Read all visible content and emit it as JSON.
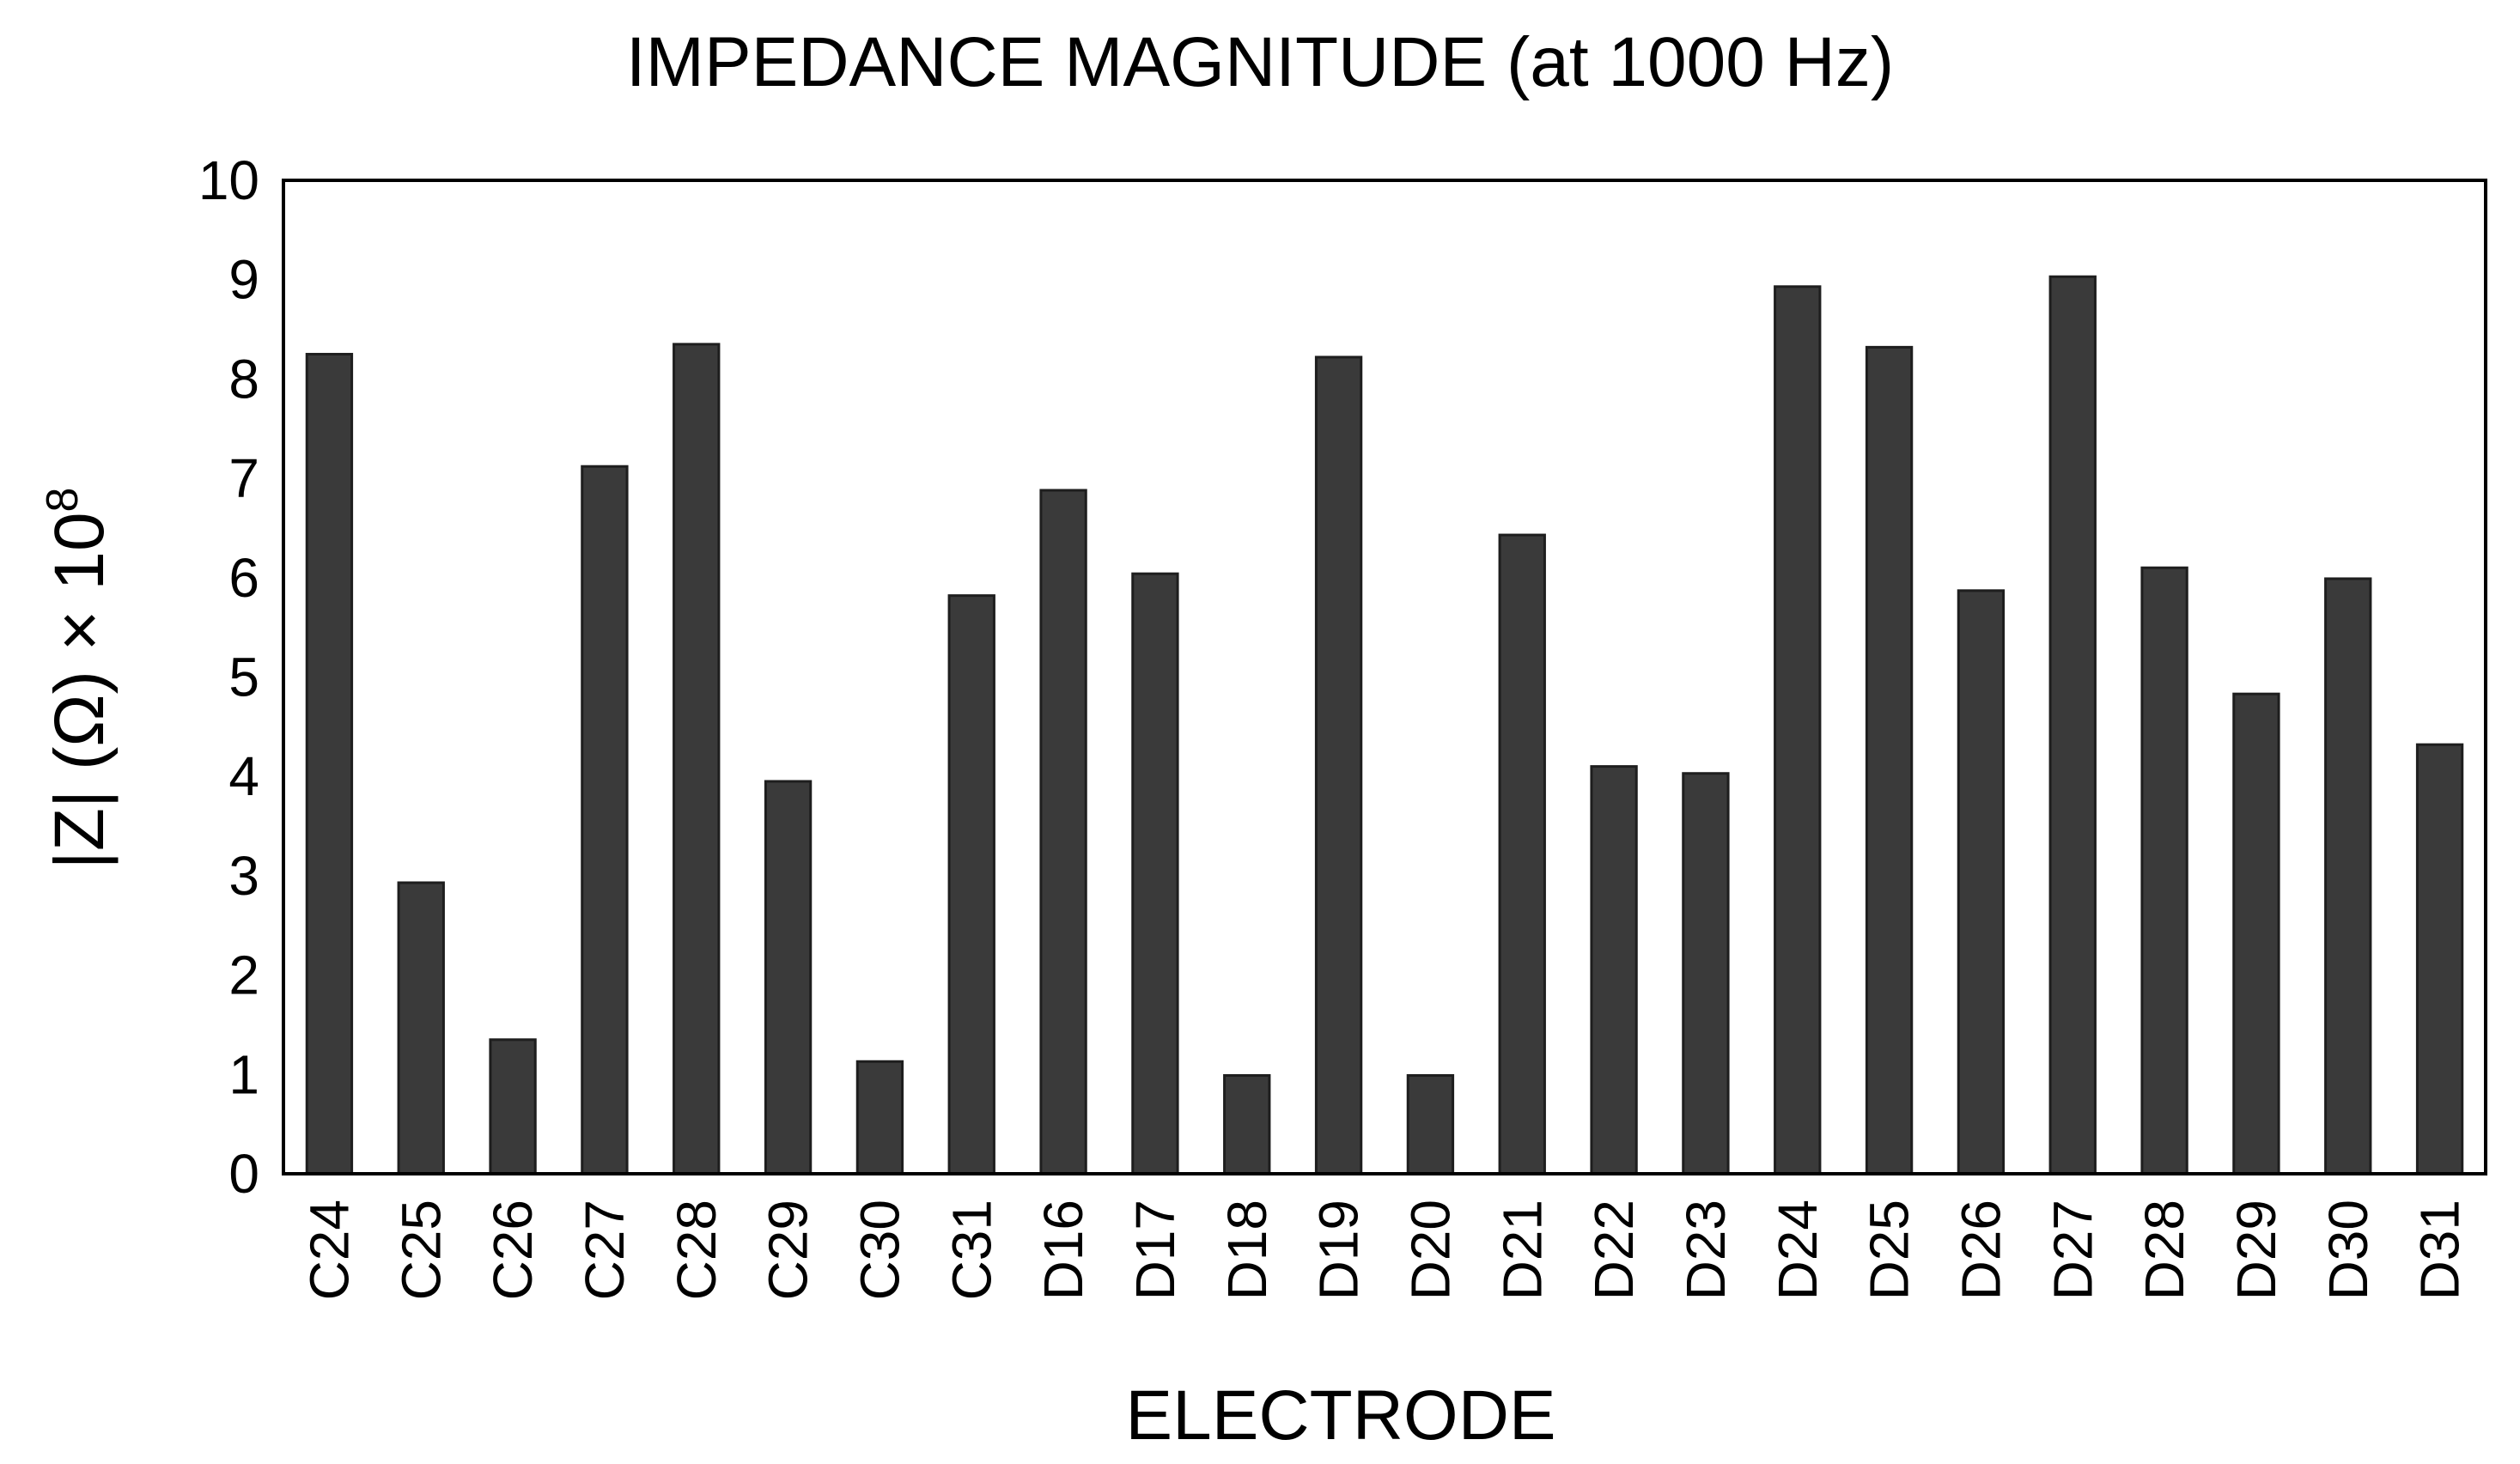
{
  "chart_data": {
    "type": "bar",
    "title": "IMPEDANCE MAGNITUDE (at 1000 Hz)",
    "xlabel": "ELECTRODE",
    "ylabel": {
      "prefix": "|Z| (Ω) × 10",
      "exponent": "8"
    },
    "ylim": [
      0,
      10
    ],
    "yticks": [
      0,
      1,
      2,
      3,
      4,
      5,
      6,
      7,
      8,
      9,
      10
    ],
    "categories": [
      "C24",
      "C25",
      "C26",
      "C27",
      "C28",
      "C29",
      "C30",
      "C31",
      "D16",
      "D17",
      "D18",
      "D19",
      "D20",
      "D21",
      "D22",
      "D23",
      "D24",
      "D25",
      "D26",
      "D27",
      "D28",
      "D29",
      "D30",
      "D31"
    ],
    "values": [
      8.25,
      2.93,
      1.35,
      7.12,
      8.35,
      3.95,
      1.13,
      5.82,
      6.88,
      6.04,
      0.99,
      8.22,
      0.99,
      6.43,
      4.1,
      4.03,
      8.93,
      8.32,
      5.87,
      9.03,
      6.1,
      4.83,
      5.99,
      4.32
    ],
    "grid": false,
    "legend": "none",
    "colors": {
      "bar": "#3a3a3a",
      "frame": "#000000"
    }
  }
}
